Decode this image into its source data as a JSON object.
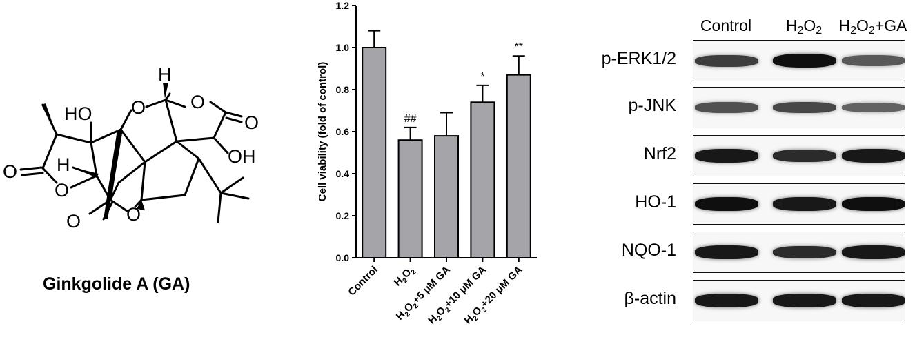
{
  "structure": {
    "compound_name": "Ginkgolide A (GA)",
    "atom_labels": [
      "HO",
      "H",
      "O",
      "O",
      "O",
      "OH",
      "H",
      "O",
      "O",
      "O",
      "O"
    ]
  },
  "chart_data": {
    "type": "bar",
    "categories": [
      "Control",
      "H2O2",
      "H2O2+5 μM GA",
      "H2O2+10 μM GA",
      "H2O2+20 μM GA"
    ],
    "category_labels": [
      {
        "parts": [
          {
            "t": "Control"
          }
        ]
      },
      {
        "parts": [
          {
            "t": "H"
          },
          {
            "t": "2",
            "sub": true
          },
          {
            "t": "O"
          },
          {
            "t": "2",
            "sub": true
          }
        ]
      },
      {
        "parts": [
          {
            "t": "H"
          },
          {
            "t": "2",
            "sub": true
          },
          {
            "t": "O"
          },
          {
            "t": "2",
            "sub": true
          },
          {
            "t": "+5 μM GA"
          }
        ]
      },
      {
        "parts": [
          {
            "t": "H"
          },
          {
            "t": "2",
            "sub": true
          },
          {
            "t": "O"
          },
          {
            "t": "2",
            "sub": true
          },
          {
            "t": "+10 μM GA"
          }
        ]
      },
      {
        "parts": [
          {
            "t": "H"
          },
          {
            "t": "2",
            "sub": true
          },
          {
            "t": "O"
          },
          {
            "t": "2",
            "sub": true
          },
          {
            "t": "+20 μM GA"
          }
        ]
      }
    ],
    "values": [
      1.0,
      0.56,
      0.58,
      0.74,
      0.87
    ],
    "errors": [
      0.08,
      0.06,
      0.11,
      0.08,
      0.09
    ],
    "annotations": [
      "",
      "##",
      "",
      "*",
      "**"
    ],
    "ylabel": "Cell viability (fold of control)",
    "ylim": [
      0,
      1.2
    ],
    "yticks": [
      "0.0",
      "0.2",
      "0.4",
      "0.6",
      "0.8",
      "1.0",
      "1.2"
    ],
    "bar_color": "#a4a4a9",
    "grid": false
  },
  "western_blot": {
    "columns": [
      {
        "parts": [
          {
            "t": "Control"
          }
        ]
      },
      {
        "parts": [
          {
            "t": "H"
          },
          {
            "t": "2",
            "sub": true
          },
          {
            "t": "O"
          },
          {
            "t": "2",
            "sub": true
          }
        ]
      },
      {
        "parts": [
          {
            "t": "H"
          },
          {
            "t": "2",
            "sub": true
          },
          {
            "t": "O"
          },
          {
            "t": "2",
            "sub": true
          },
          {
            "t": "+GA"
          }
        ]
      }
    ],
    "rows": [
      {
        "label": "p-ERK1/2",
        "intensity": [
          0.75,
          1.0,
          0.6
        ]
      },
      {
        "label": "p-JNK",
        "intensity": [
          0.65,
          0.7,
          0.55
        ]
      },
      {
        "label": "Nrf2",
        "intensity": [
          0.95,
          0.85,
          0.95
        ]
      },
      {
        "label": "HO-1",
        "intensity": [
          1.0,
          0.95,
          1.0
        ]
      },
      {
        "label": "NQO-1",
        "intensity": [
          0.95,
          0.85,
          0.95
        ]
      },
      {
        "label": "β-actin",
        "intensity": [
          0.95,
          0.95,
          0.95
        ]
      }
    ]
  }
}
